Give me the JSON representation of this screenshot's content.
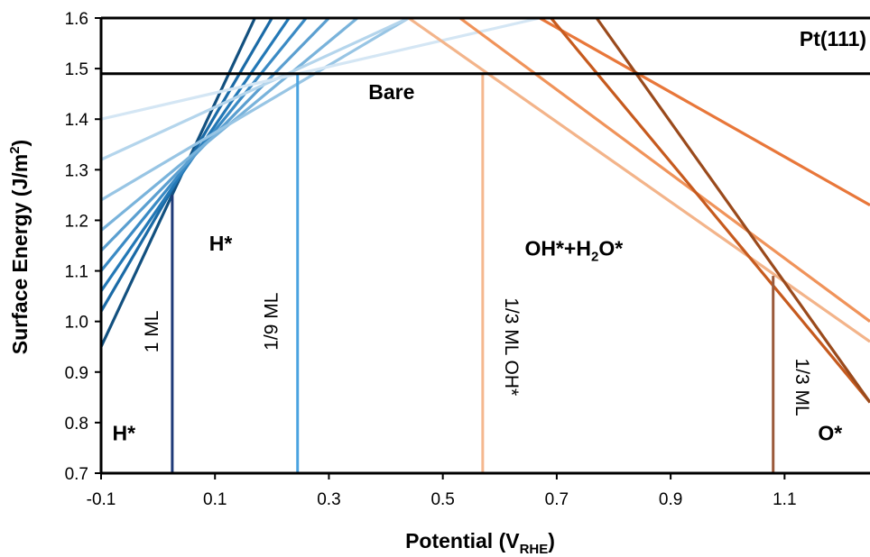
{
  "chart_data": {
    "type": "line",
    "title": "",
    "xlabel": "Potential (V",
    "xlabel_sub": "RHE",
    "xlabel_close": ")",
    "ylabel": "Surface Energy (J/m",
    "ylabel_sup": "2",
    "ylabel_close": ")",
    "xlim": [
      -0.1,
      1.25
    ],
    "ylim": [
      0.7,
      1.6
    ],
    "xticks": [
      "-0.1",
      "0.1",
      "0.3",
      "0.5",
      "0.7",
      "0.9",
      "1.1"
    ],
    "xtick_values": [
      -0.1,
      0.1,
      0.3,
      0.5,
      0.7,
      0.9,
      1.1
    ],
    "yticks": [
      "0.7",
      "0.8",
      "0.9",
      "1.0",
      "1.1",
      "1.2",
      "1.3",
      "1.4",
      "1.5",
      "1.6"
    ],
    "ytick_values": [
      0.7,
      0.8,
      0.9,
      1.0,
      1.1,
      1.2,
      1.3,
      1.4,
      1.5,
      1.6
    ],
    "grid": false,
    "bare_energy": 1.49,
    "series": [
      {
        "group": "H*",
        "color": "#12507f",
        "x": [
          -0.1,
          0.17
        ],
        "y": [
          0.95,
          1.6
        ]
      },
      {
        "group": "H*",
        "color": "#1a6aa6",
        "x": [
          -0.1,
          0.2
        ],
        "y": [
          1.02,
          1.6
        ]
      },
      {
        "group": "H*",
        "color": "#2378b6",
        "x": [
          -0.1,
          0.23
        ],
        "y": [
          1.06,
          1.6
        ]
      },
      {
        "group": "H*",
        "color": "#3a8ac4",
        "x": [
          -0.1,
          0.26
        ],
        "y": [
          1.1,
          1.6
        ]
      },
      {
        "group": "H*",
        "color": "#5b9fd0",
        "x": [
          -0.1,
          0.3
        ],
        "y": [
          1.14,
          1.6
        ]
      },
      {
        "group": "H*",
        "color": "#79b3db",
        "x": [
          -0.1,
          0.35
        ],
        "y": [
          1.18,
          1.6
        ]
      },
      {
        "group": "H*",
        "color": "#98c5e4",
        "x": [
          -0.1,
          0.44
        ],
        "y": [
          1.24,
          1.6
        ]
      },
      {
        "group": "H*",
        "color": "#b4d5ec",
        "x": [
          -0.1,
          0.44
        ],
        "y": [
          1.32,
          1.6
        ]
      },
      {
        "group": "H*",
        "color": "#d4e6f4",
        "x": [
          -0.1,
          0.67
        ],
        "y": [
          1.4,
          1.6
        ]
      },
      {
        "group": "OH*",
        "color": "#f3b48a",
        "x": [
          0.44,
          1.25
        ],
        "y": [
          1.6,
          0.96
        ]
      },
      {
        "group": "OH*",
        "color": "#f0935a",
        "x": [
          0.53,
          1.25
        ],
        "y": [
          1.6,
          1.0
        ]
      },
      {
        "group": "OH*",
        "color": "#e8773a",
        "x": [
          0.67,
          1.25
        ],
        "y": [
          1.6,
          1.23
        ]
      },
      {
        "group": "O*",
        "color": "#c65a1e",
        "x": [
          0.69,
          1.25
        ],
        "y": [
          1.6,
          0.84
        ]
      },
      {
        "group": "O*",
        "color": "#9a4a1c",
        "x": [
          0.77,
          1.25
        ],
        "y": [
          1.6,
          0.84
        ]
      }
    ],
    "boundaries": [
      {
        "x": 0.025,
        "y_top": 1.25,
        "color": "#1f3a78",
        "label": "1 ML",
        "label_x": 0.0,
        "label_y": 0.98
      },
      {
        "x": 0.245,
        "y_top": 1.49,
        "color": "#4aa3e0",
        "label": "1/9 ML",
        "label_x": 0.21,
        "label_y": 1.0
      },
      {
        "x": 0.57,
        "y_top": 1.49,
        "color": "#f5b88f",
        "label": "1/3 ML OH*",
        "label_x": 0.61,
        "label_y": 0.95
      },
      {
        "x": 1.08,
        "y_top": 1.09,
        "color": "#9b5a3a",
        "label": "1/3 ML",
        "label_x": 1.12,
        "label_y": 0.87
      }
    ],
    "region_labels": [
      {
        "text": "Pt(111)",
        "x": 1.185,
        "y": 1.545
      },
      {
        "text": "Bare",
        "x": 0.41,
        "y": 1.44
      },
      {
        "text": "H*",
        "x": 0.11,
        "y": 1.14
      },
      {
        "text": "OH*+H",
        "sub": "2",
        "tail": "O*",
        "x": 0.73,
        "y": 1.13
      },
      {
        "text": "H*",
        "x": -0.06,
        "y": 0.765
      },
      {
        "text": "O*",
        "x": 1.18,
        "y": 0.765
      }
    ]
  }
}
